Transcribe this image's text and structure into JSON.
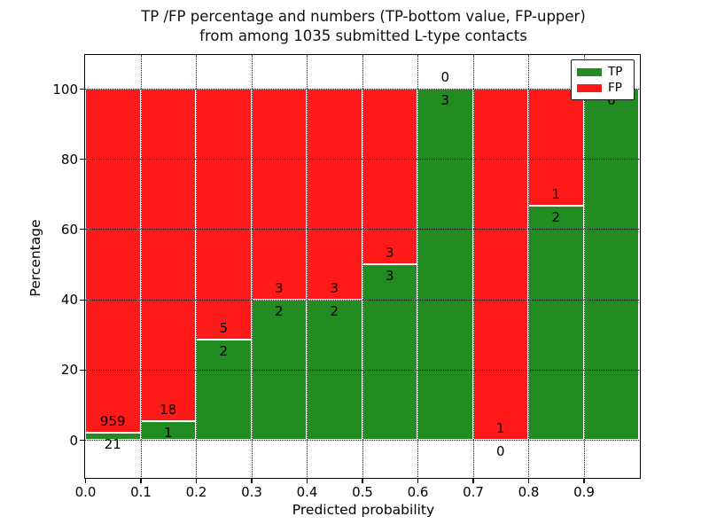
{
  "figure": {
    "title_line1": "TP /FP percentage and numbers (TP-bottom value, FP-upper)",
    "title_line2": "from among 1035 submitted L-type contacts",
    "background": "#ffffff"
  },
  "chart_data": {
    "type": "bar",
    "stacked": true,
    "title": "TP /FP percentage and numbers (TP-bottom value, FP-upper) from among 1035 submitted L-type contacts",
    "xlabel": "Predicted probability",
    "ylabel": "Percentage",
    "total_contacts": 1035,
    "x_tick_labels": [
      "0.0",
      "0.1",
      "0.2",
      "0.3",
      "0.4",
      "0.5",
      "0.6",
      "0.7",
      "0.8",
      "0.9"
    ],
    "y_tick_values": [
      0,
      20,
      40,
      60,
      80,
      100
    ],
    "y_tick_labels": [
      "0",
      "20",
      "40",
      "60",
      "80",
      "100"
    ],
    "xlim": [
      0.0,
      1.0
    ],
    "ylim": [
      -11,
      110
    ],
    "grid": {
      "style": "dotted",
      "color": "#000000",
      "above_bars": true
    },
    "categories": [
      "0.0-0.1",
      "0.1-0.2",
      "0.2-0.3",
      "0.3-0.4",
      "0.4-0.5",
      "0.5-0.6",
      "0.6-0.7",
      "0.7-0.8",
      "0.8-0.9",
      "0.9-1.0"
    ],
    "series": [
      {
        "name": "TP",
        "color": "#228b22",
        "counts": [
          21,
          1,
          2,
          2,
          2,
          3,
          3,
          0,
          2,
          6
        ]
      },
      {
        "name": "FP",
        "color": "#ff1a1a",
        "counts": [
          959,
          18,
          5,
          3,
          3,
          3,
          0,
          1,
          1,
          0
        ]
      }
    ],
    "tp_percentages": [
      2.14,
      5.26,
      28.57,
      40.0,
      40.0,
      50.0,
      100.0,
      0.0,
      66.67,
      100.0
    ],
    "legend": {
      "position": "upper right",
      "entries": [
        {
          "label": "TP",
          "color": "#228b22"
        },
        {
          "label": "FP",
          "color": "#ff1a1a"
        }
      ]
    }
  }
}
